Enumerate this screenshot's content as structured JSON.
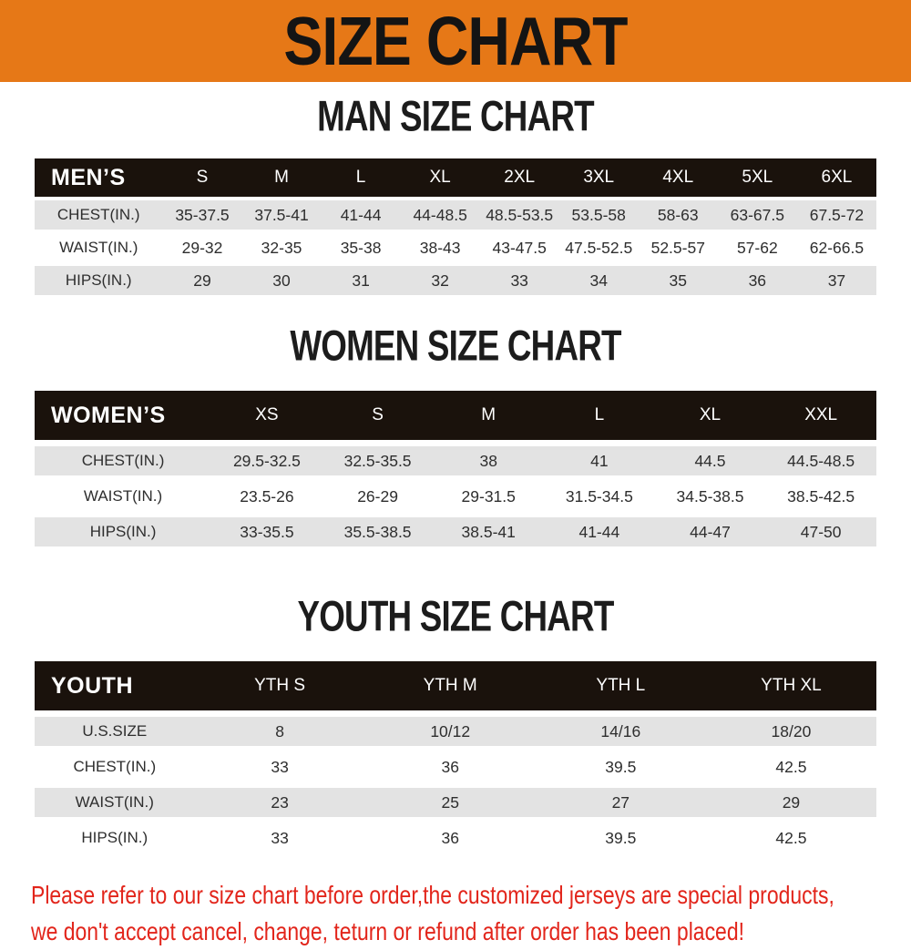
{
  "banner": {
    "title": "SIZE CHART",
    "bg_color": "#e67817",
    "text_color": "#141414"
  },
  "colors": {
    "table_header_bg": "#1a120c",
    "table_header_text": "#ffffff",
    "row_stripe": "#e3e3e3",
    "footer_text": "#e2251b"
  },
  "sections": [
    {
      "id": "men",
      "title": "MAN SIZE CHART",
      "header_label": "MEN’S",
      "columns": [
        "S",
        "M",
        "L",
        "XL",
        "2XL",
        "3XL",
        "4XL",
        "5XL",
        "6XL"
      ],
      "rows": [
        {
          "label": "CHEST(IN.)",
          "values": [
            "35-37.5",
            "37.5-41",
            "41-44",
            "44-48.5",
            "48.5-53.5",
            "53.5-58",
            "58-63",
            "63-67.5",
            "67.5-72"
          ]
        },
        {
          "label": "WAIST(IN.)",
          "values": [
            "29-32",
            "32-35",
            "35-38",
            "38-43",
            "43-47.5",
            "47.5-52.5",
            "52.5-57",
            "57-62",
            "62-66.5"
          ]
        },
        {
          "label": "HIPS(IN.)",
          "values": [
            "29",
            "30",
            "31",
            "32",
            "33",
            "34",
            "35",
            "36",
            "37"
          ]
        }
      ]
    },
    {
      "id": "women",
      "title": "WOMEN SIZE CHART",
      "header_label": "WOMEN’S",
      "columns": [
        "XS",
        "S",
        "M",
        "L",
        "XL",
        "XXL"
      ],
      "rows": [
        {
          "label": "CHEST(IN.)",
          "values": [
            "29.5-32.5",
            "32.5-35.5",
            "38",
            "41",
            "44.5",
            "44.5-48.5"
          ]
        },
        {
          "label": "WAIST(IN.)",
          "values": [
            "23.5-26",
            "26-29",
            "29-31.5",
            "31.5-34.5",
            "34.5-38.5",
            "38.5-42.5"
          ]
        },
        {
          "label": "HIPS(IN.)",
          "values": [
            "33-35.5",
            "35.5-38.5",
            "38.5-41",
            "41-44",
            "44-47",
            "47-50"
          ]
        }
      ]
    },
    {
      "id": "youth",
      "title": "YOUTH SIZE CHART",
      "header_label": "YOUTH",
      "columns": [
        "YTH S",
        "YTH M",
        "YTH L",
        "YTH XL"
      ],
      "rows": [
        {
          "label": "U.S.SIZE",
          "values": [
            "8",
            "10/12",
            "14/16",
            "18/20"
          ]
        },
        {
          "label": "CHEST(IN.)",
          "values": [
            "33",
            "36",
            "39.5",
            "42.5"
          ]
        },
        {
          "label": "WAIST(IN.)",
          "values": [
            "23",
            "25",
            "27",
            "29"
          ]
        },
        {
          "label": "HIPS(IN.)",
          "values": [
            "33",
            "36",
            "39.5",
            "42.5"
          ]
        }
      ]
    }
  ],
  "footer": {
    "line1": "Please refer to our size chart before order,the customized jerseys are special products,",
    "line2": "we don't accept cancel, change, teturn or refund after order has been placed!"
  }
}
